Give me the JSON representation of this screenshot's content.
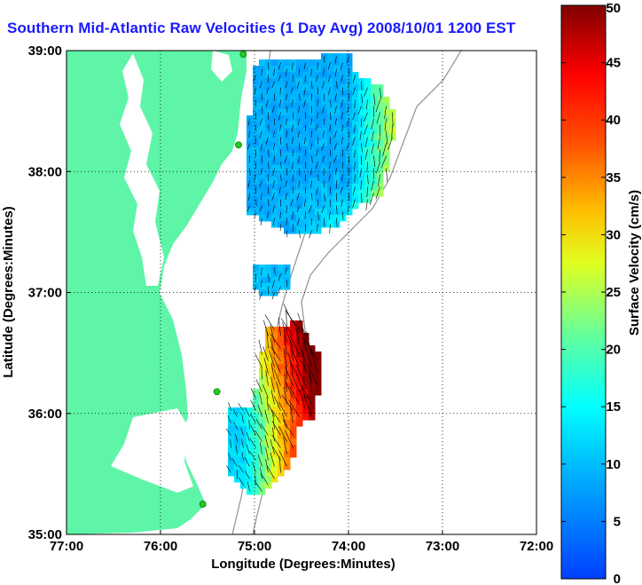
{
  "title": "Southern Mid-Atlantic Raw Velocities (1 Day Avg) 2008/10/01 1200 EST",
  "colors": {
    "land": "#5ef5a8",
    "title": "#1a1aff",
    "station": "#22cc22",
    "vector": "#000000",
    "bathymetry": "#999999"
  },
  "map": {
    "x_axis": {
      "label": "Longitude (Degrees:Minutes)",
      "ticks": [
        {
          "value": -77,
          "label": "77:00"
        },
        {
          "value": -76,
          "label": "76:00"
        },
        {
          "value": -75,
          "label": "75:00"
        },
        {
          "value": -74,
          "label": "74:00"
        },
        {
          "value": -73,
          "label": "73:00"
        },
        {
          "value": -72,
          "label": "72:00"
        }
      ],
      "range": [
        -77,
        -72
      ]
    },
    "y_axis": {
      "label": "Latitude (Degrees:Minutes)",
      "ticks": [
        {
          "value": 35,
          "label": "35:00"
        },
        {
          "value": 36,
          "label": "36:00"
        },
        {
          "value": 37,
          "label": "37:00"
        },
        {
          "value": 38,
          "label": "38:00"
        },
        {
          "value": 39,
          "label": "39:00"
        }
      ],
      "range": [
        35,
        39
      ]
    },
    "grid": "dotted"
  },
  "colorbar": {
    "label": "Surface Velocity (cm/s)",
    "range": [
      0,
      50
    ],
    "ticks": [
      0,
      5,
      10,
      15,
      20,
      25,
      30,
      35,
      40,
      45,
      50
    ],
    "colormap": "jet"
  },
  "stations": [
    {
      "lon": -75.12,
      "lat": 38.97
    },
    {
      "lon": -75.17,
      "lat": 38.22
    },
    {
      "lon": -75.4,
      "lat": 36.18
    },
    {
      "lon": -75.55,
      "lat": 35.25
    }
  ]
}
